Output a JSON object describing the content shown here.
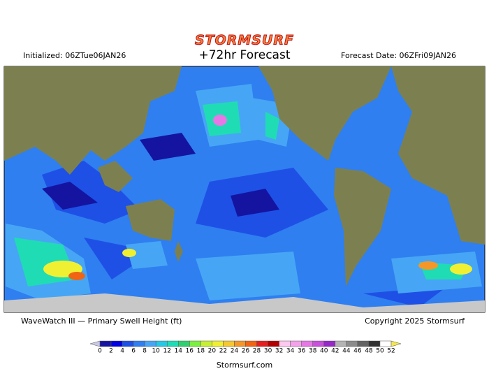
{
  "header": {
    "logo": "STORMSURF",
    "title": "+72hr Forecast",
    "initialized": "Initialized: 06ZTue06JAN26",
    "forecast_date": "Forecast Date: 06ZFri09JAN26"
  },
  "footer": {
    "caption": "WaveWatch III — Primary Swell Height (ft)",
    "copyright": "Copyright 2025 Stormsurf",
    "site": "Stormsurf.com"
  },
  "legend": {
    "ticks": [
      0,
      2,
      4,
      6,
      8,
      10,
      12,
      14,
      16,
      18,
      20,
      22,
      24,
      26,
      28,
      30,
      32,
      34,
      36,
      38,
      40,
      42,
      44,
      46,
      48,
      50,
      52
    ],
    "colors": [
      "#1414a0",
      "#0000e0",
      "#1e50e6",
      "#2f7ff0",
      "#46a6f5",
      "#27c8e6",
      "#20dcb4",
      "#30d070",
      "#7cf040",
      "#c8f032",
      "#f0f032",
      "#f5c832",
      "#f59628",
      "#f06414",
      "#e61e1e",
      "#b40000",
      "#ffc8f0",
      "#f5a0eb",
      "#e678e6",
      "#c850dc",
      "#9628c8",
      "#b4b4b4",
      "#8c8c8c",
      "#646464",
      "#323232",
      "#ffffff"
    ],
    "end_colors": [
      "#c8c8e6",
      "#f5e650"
    ]
  }
}
